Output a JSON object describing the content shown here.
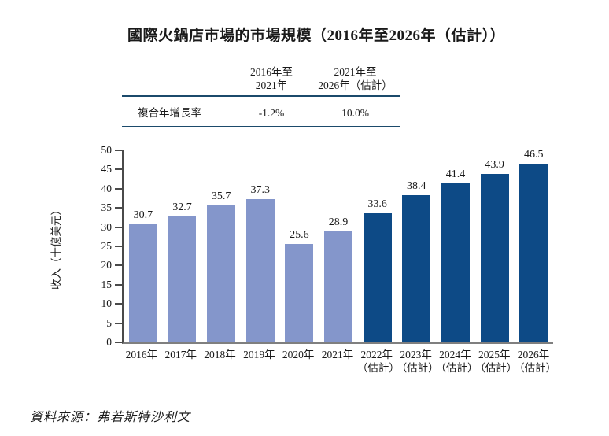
{
  "title": "國際火鍋店市場的市場規模（2016年至2026年（估計））",
  "cagr_table": {
    "row_label": "複合年增長率",
    "columns": [
      {
        "header_line1": "2016年至",
        "header_line2": "2021年",
        "value": "-1.2%"
      },
      {
        "header_line1": "2021年至",
        "header_line2": "2026年（估計）",
        "value": "10.0%"
      }
    ]
  },
  "chart_data": {
    "type": "bar",
    "title": "國際火鍋店市場的市場規模（2016年至2026年（估計））",
    "ylabel": "收入（十億美元）",
    "xlabel": "",
    "ylim": [
      0,
      50
    ],
    "yticks": [
      0,
      5,
      10,
      15,
      20,
      25,
      30,
      35,
      40,
      45,
      50
    ],
    "grid": false,
    "legend_position": "none",
    "categories": [
      "2016年",
      "2017年",
      "2018年",
      "2019年",
      "2020年",
      "2021年",
      "2022年",
      "2023年",
      "2024年",
      "2025年",
      "2026年"
    ],
    "estimated_suffix": "（估計）",
    "estimated_from_index": 6,
    "values": [
      30.7,
      32.7,
      35.7,
      37.3,
      25.6,
      28.9,
      33.6,
      38.4,
      41.4,
      43.9,
      46.5
    ],
    "colors": {
      "actual_bar": "#8496CB",
      "estimated_bar": "#0D4A86"
    }
  },
  "source": "資料來源：弗若斯特沙利文",
  "colors": {
    "table_rule": "#1B4A6B",
    "y_axis": "#4a4a4a",
    "x_axis": "#7f7f7f",
    "text": "#1a1a1a"
  }
}
